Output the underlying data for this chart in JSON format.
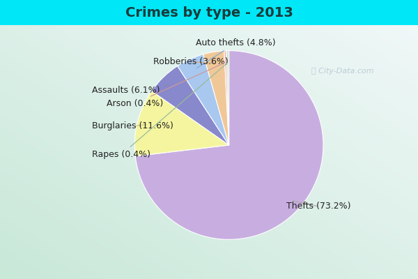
{
  "title": "Crimes by type - 2013",
  "slices": [
    {
      "label": "Thefts",
      "pct": 73.2,
      "color": "#c8aee0"
    },
    {
      "label": "Burglaries",
      "pct": 11.6,
      "color": "#f5f5a0"
    },
    {
      "label": "Assaults",
      "pct": 6.1,
      "color": "#8888cc"
    },
    {
      "label": "Auto thefts",
      "pct": 4.8,
      "color": "#a8c8f0"
    },
    {
      "label": "Robberies",
      "pct": 3.6,
      "color": "#f0c898"
    },
    {
      "label": "Arson",
      "pct": 0.4,
      "color": "#f8b8b8"
    },
    {
      "label": "Rapes",
      "pct": 0.4,
      "color": "#c8e8c8"
    }
  ],
  "startangle": 90,
  "title_fontsize": 14,
  "label_fontsize": 9,
  "bg_cyan": "#00e8f8",
  "bg_green_white": true,
  "watermark": "City-Data.com"
}
